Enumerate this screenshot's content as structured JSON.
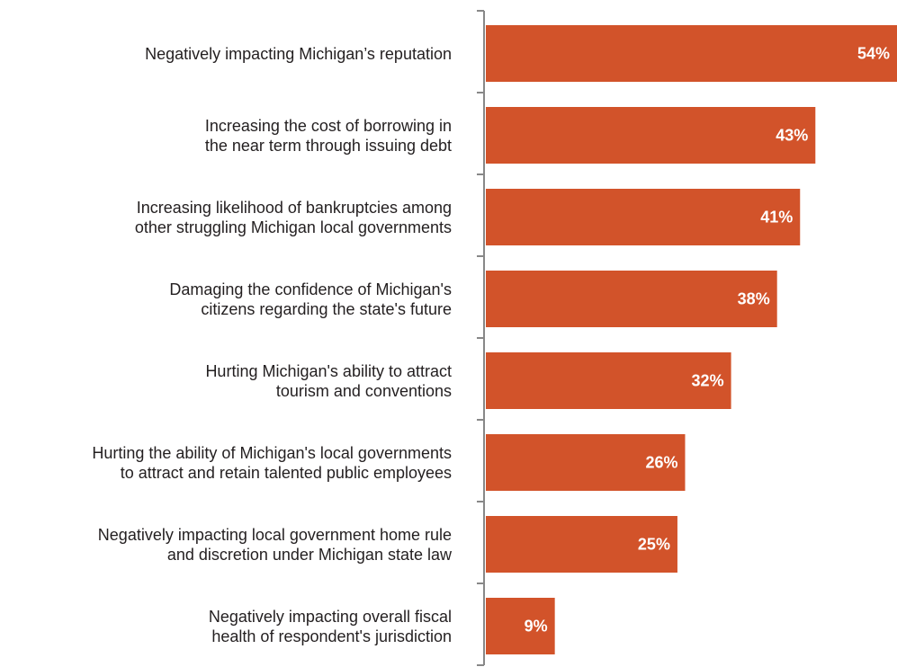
{
  "chart_data": {
    "type": "bar",
    "orientation": "horizontal",
    "categories": [
      "Negatively impacting Michigan’s reputation",
      "Increasing the cost of borrowing in\nthe near term through issuing debt",
      "Increasing likelihood of bankruptcies among\nother struggling Michigan local governments",
      "Damaging the confidence of Michigan's\ncitizens regarding the state's future",
      "Hurting Michigan's ability to attract\ntourism and conventions",
      "Hurting the ability of Michigan's local governments\nto attract and retain talented public employees",
      "Negatively impacting local government home rule\nand discretion under Michigan state law",
      "Negatively impacting overall fiscal\nhealth of respondent's jurisdiction"
    ],
    "values": [
      54,
      43,
      41,
      38,
      32,
      26,
      25,
      9
    ],
    "value_labels": [
      "54%",
      "43%",
      "41%",
      "38%",
      "32%",
      "26%",
      "25%",
      "9%"
    ],
    "color": "#d2532a",
    "xlim": [
      0,
      54
    ]
  }
}
